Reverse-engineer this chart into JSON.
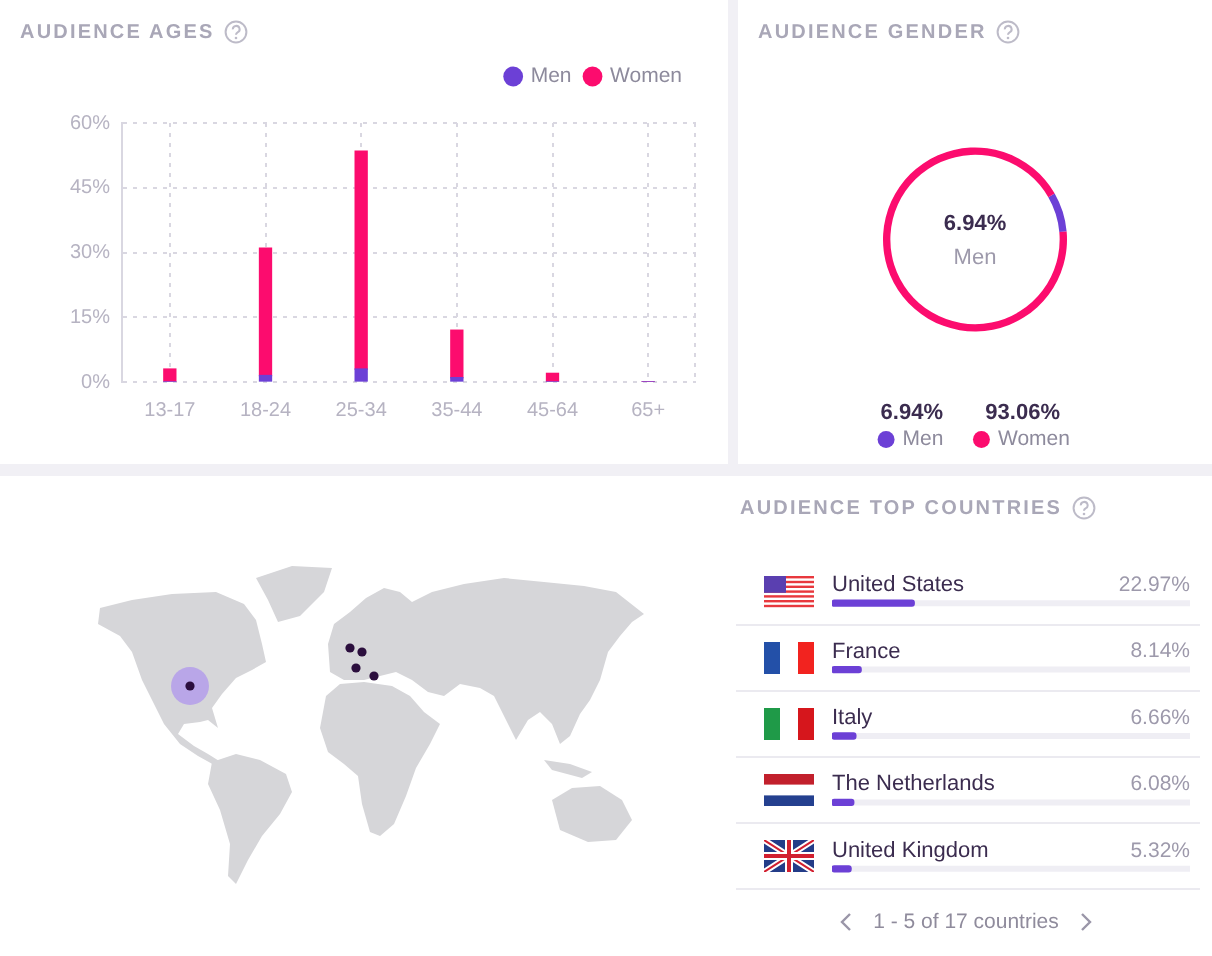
{
  "chart_data": [
    {
      "type": "bar",
      "title": "AUDIENCE AGES",
      "categories": [
        "13-17",
        "18-24",
        "25-34",
        "35-44",
        "45-64",
        "65+"
      ],
      "series": [
        {
          "name": "Men",
          "color": "#6c40d6",
          "values": [
            0,
            1.5,
            3,
            1,
            0,
            0
          ]
        },
        {
          "name": "Women",
          "color": "#fc0c6e",
          "values": [
            3,
            29.5,
            50.5,
            11,
            2,
            0
          ]
        }
      ],
      "stacked": true,
      "ylim": [
        0,
        60
      ],
      "yticks": [
        {
          "value": 0,
          "label": "0%"
        },
        {
          "value": 15,
          "label": "15%"
        },
        {
          "value": 30,
          "label": "30%"
        },
        {
          "value": 45,
          "label": "45%"
        },
        {
          "value": 60,
          "label": "60%"
        }
      ],
      "grid": true,
      "legend": "top right"
    },
    {
      "type": "donut",
      "title": "AUDIENCE GENDER",
      "categories": [
        "Men",
        "Women"
      ],
      "values": [
        6.94,
        93.06
      ],
      "colors": [
        "#6c40d6",
        "#fc0c6e"
      ],
      "value_labels": [
        "6.94%",
        "93.06%"
      ],
      "legend": "bottom",
      "annotations": [
        "6.94%",
        "Men"
      ]
    },
    {
      "type": "bar",
      "orientation": "horizontal",
      "title": "AUDIENCE TOP COUNTRIES",
      "categories": [
        "United States",
        "France",
        "Italy",
        "The Netherlands",
        "United Kingdom"
      ],
      "values": [
        22.97,
        8.14,
        6.66,
        6.08,
        5.32
      ],
      "color": "#6c40d6",
      "value_labels": [
        "22.97%",
        "8.14%",
        "6.66%",
        "6.08%",
        "5.32%"
      ],
      "xlim": [
        0,
        100
      ],
      "tick_labels": "y",
      "annotations": [
        "1 - 5 of 17 countries"
      ]
    }
  ]
}
